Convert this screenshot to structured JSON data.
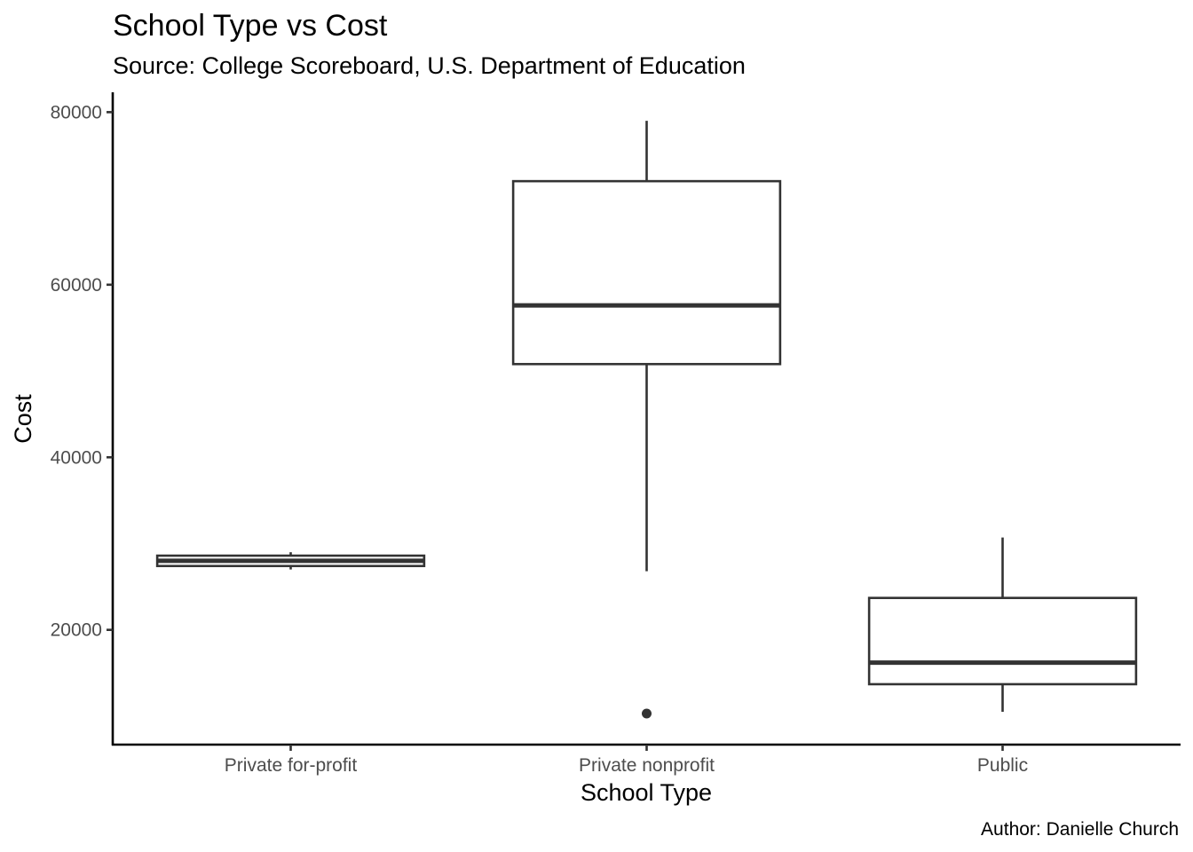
{
  "chart_data": {
    "type": "box",
    "title": "School Type vs Cost",
    "subtitle": "Source: College Scoreboard, U.S. Department of Education",
    "caption": "Author: Danielle Church",
    "xlabel": "School Type",
    "ylabel": "Cost",
    "ylim": [
      6700,
      82300
    ],
    "y_ticks": [
      20000,
      40000,
      60000,
      80000
    ],
    "y_tick_labels": [
      "20000",
      "40000",
      "60000",
      "80000"
    ],
    "categories": [
      "Private for-profit",
      "Private nonprofit",
      "Public"
    ],
    "boxes": [
      {
        "category": "Private for-profit",
        "whisker_low": 27000,
        "q1": 27400,
        "median": 28000,
        "q3": 28600,
        "whisker_high": 29000,
        "outliers": []
      },
      {
        "category": "Private nonprofit",
        "whisker_low": 26800,
        "q1": 50800,
        "median": 57600,
        "q3": 72000,
        "whisker_high": 79000,
        "outliers": [
          10300
        ]
      },
      {
        "category": "Public",
        "whisker_low": 10500,
        "q1": 13700,
        "median": 16200,
        "q3": 23700,
        "whisker_high": 30700,
        "outliers": []
      }
    ],
    "grid": false,
    "colors": {
      "box_stroke": "#333333",
      "box_fill": "#ffffff",
      "axis": "#000000",
      "tick_label": "#4d4d4d"
    }
  }
}
